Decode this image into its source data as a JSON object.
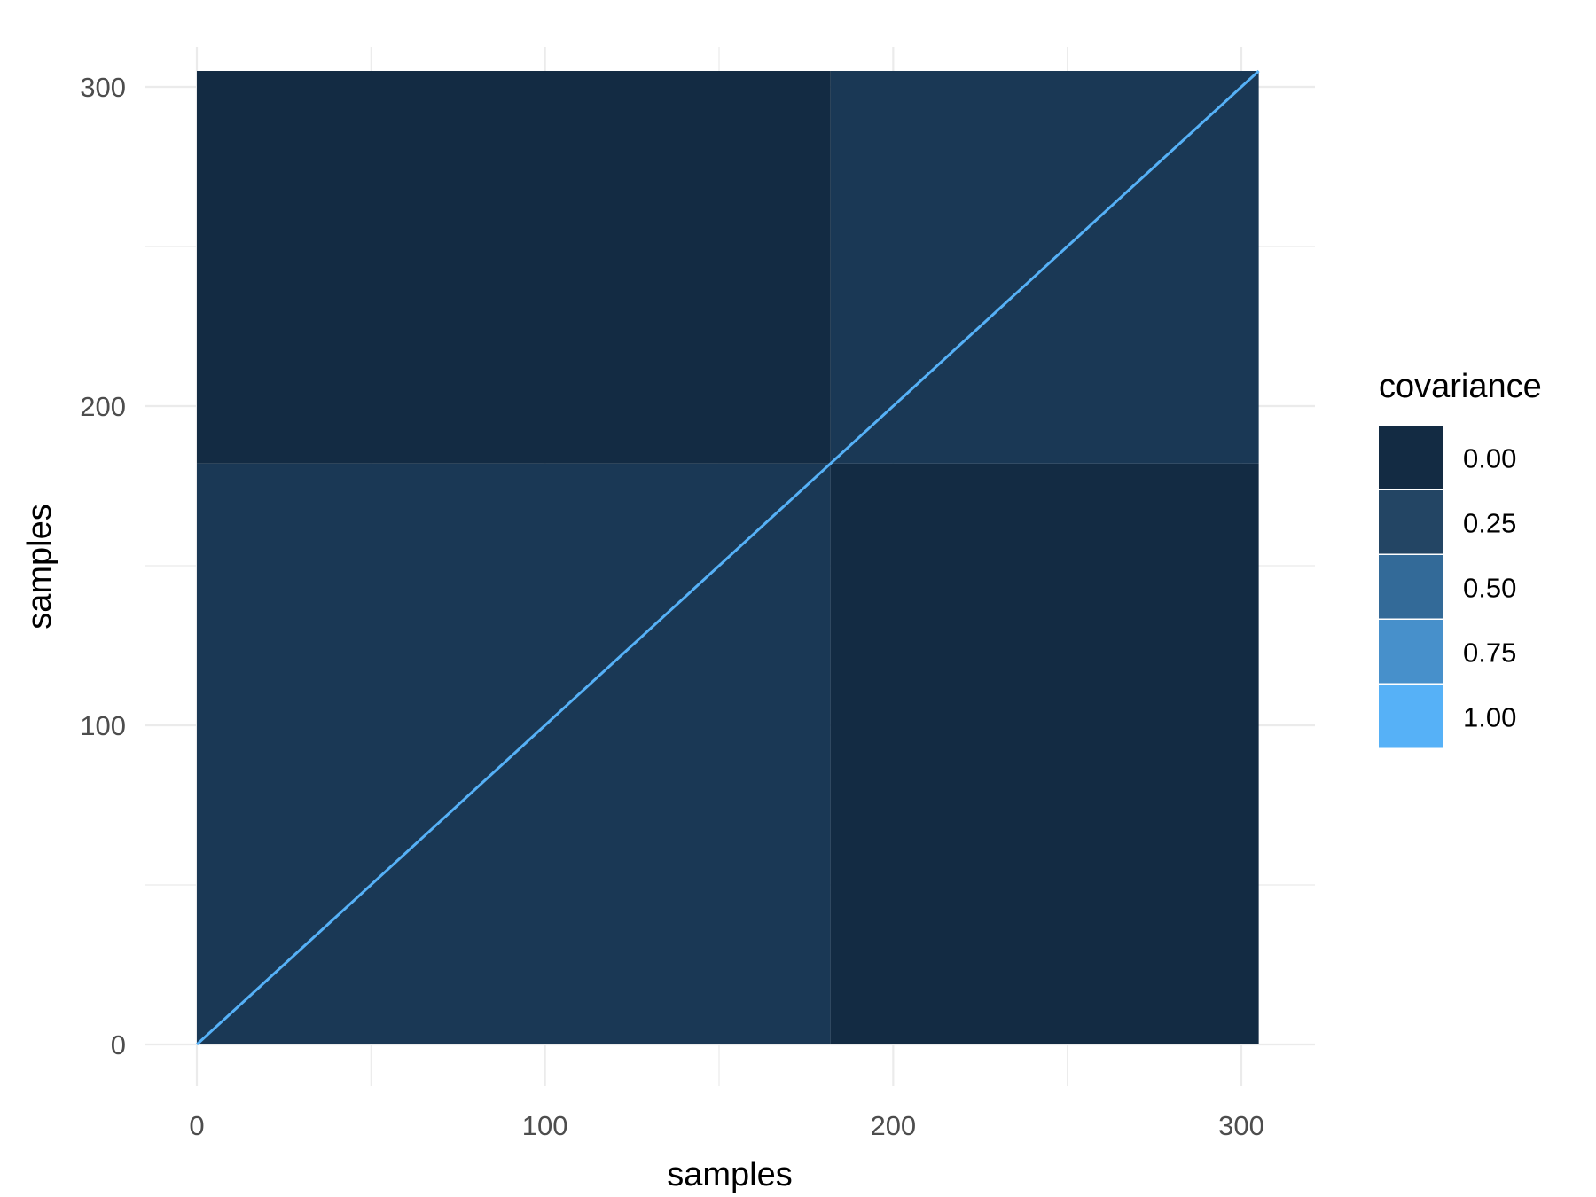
{
  "chart_data": {
    "type": "heatmap",
    "xlabel": "samples",
    "ylabel": "samples",
    "xlim": [
      0,
      305
    ],
    "ylim": [
      0,
      305
    ],
    "x_ticks": [
      0,
      100,
      200,
      300
    ],
    "y_ticks": [
      0,
      100,
      200,
      300
    ],
    "grid": true,
    "diagonal_value": 1.0,
    "blocks": [
      {
        "x": [
          0,
          182
        ],
        "y": [
          0,
          182
        ],
        "value": 0.1
      },
      {
        "x": [
          182,
          305
        ],
        "y": [
          182,
          305
        ],
        "value": 0.1
      },
      {
        "x": [
          0,
          182
        ],
        "y": [
          182,
          305
        ],
        "value": 0.0
      },
      {
        "x": [
          182,
          305
        ],
        "y": [
          0,
          182
        ],
        "value": 0.0
      }
    ],
    "color_scale": {
      "low": "#132B43",
      "high": "#56B1F7",
      "limits": [
        0,
        1
      ]
    },
    "legend": {
      "title": "covariance",
      "position": "right",
      "breaks": [
        "0.00",
        "0.25",
        "0.50",
        "0.75",
        "1.00"
      ],
      "colors": [
        "#132B43",
        "#234564",
        "#336A98",
        "#4790CB",
        "#56B1F7"
      ]
    }
  }
}
